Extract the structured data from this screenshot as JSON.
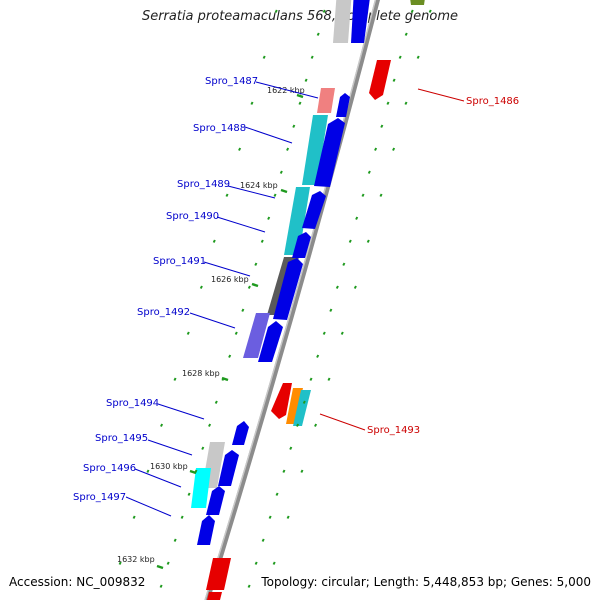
{
  "title": "Serratia proteamaculans 568, complete genome",
  "footer": {
    "accession": "Accession: NC_009832",
    "summary": "Topology: circular; Length: 5,448,853 bp; Genes: 5,000"
  },
  "colors": {
    "forward_cds": "#0000e6",
    "reverse_cds": "#e60000",
    "label_forward": "#0000cc",
    "label_reverse": "#cc0000",
    "backbone": "#8c8c8c",
    "tick": "#1f9a1f"
  },
  "ticks": [
    {
      "label": "1622 kbp"
    },
    {
      "label": "1624 kbp"
    },
    {
      "label": "1626 kbp"
    },
    {
      "label": "1628 kbp"
    },
    {
      "label": "1630 kbp"
    },
    {
      "label": "1632 kbp"
    }
  ],
  "gene_labels": [
    {
      "id": "Spro_1487",
      "strand": "forward"
    },
    {
      "id": "Spro_1488",
      "strand": "forward"
    },
    {
      "id": "Spro_1489",
      "strand": "forward"
    },
    {
      "id": "Spro_1490",
      "strand": "forward"
    },
    {
      "id": "Spro_1491",
      "strand": "forward"
    },
    {
      "id": "Spro_1492",
      "strand": "forward"
    },
    {
      "id": "Spro_1494",
      "strand": "forward"
    },
    {
      "id": "Spro_1495",
      "strand": "forward"
    },
    {
      "id": "Spro_1496",
      "strand": "forward"
    },
    {
      "id": "Spro_1497",
      "strand": "forward"
    },
    {
      "id": "Spro_1486",
      "strand": "reverse"
    },
    {
      "id": "Spro_1493",
      "strand": "reverse"
    }
  ]
}
